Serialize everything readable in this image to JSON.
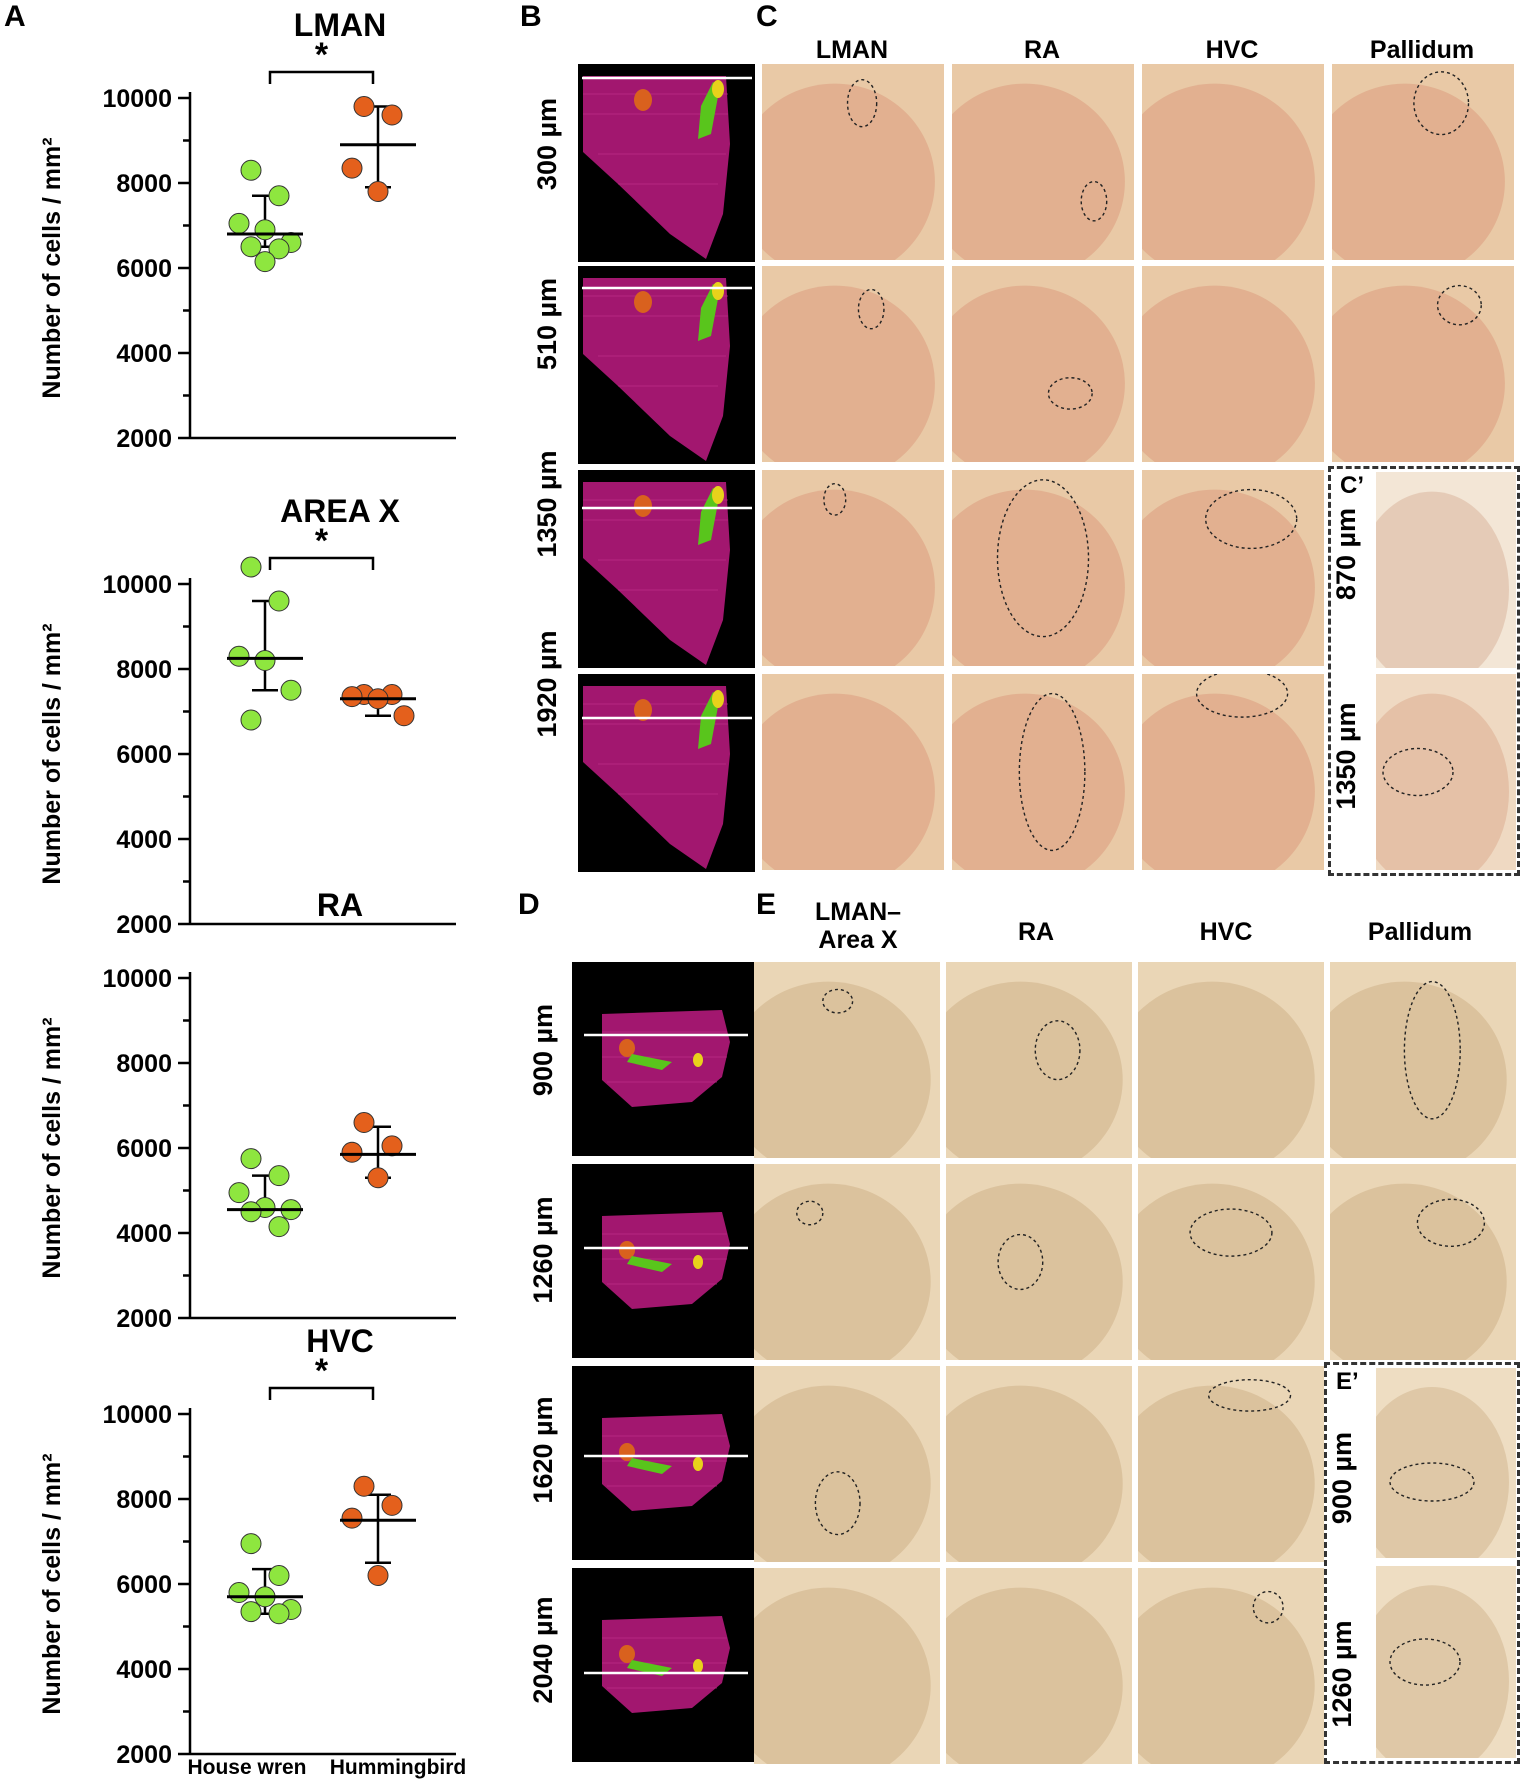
{
  "panel_labels": {
    "a": "A",
    "b": "B",
    "c": "C",
    "d": "D",
    "e": "E",
    "c_prime": "C’",
    "e_prime": "E’"
  },
  "chart_data": [
    {
      "type": "scatter",
      "title": "LMAN",
      "ylabel": "Number of cells / mm²",
      "ylim": [
        2000,
        10000
      ],
      "yticks": [
        "2000",
        "4000",
        "6000",
        "8000",
        "10000"
      ],
      "significance": "*",
      "groups": [
        {
          "name": "House wren",
          "color": "#8ee63f",
          "points": [
            8300,
            7700,
            7050,
            6900,
            6600,
            6500,
            6450,
            6150
          ],
          "mean": 6800,
          "err_low": 6500,
          "err_high": 7700
        },
        {
          "name": "Hummingbird",
          "color": "#e4601c",
          "points": [
            9800,
            9600,
            8350,
            7800
          ],
          "mean": 8900,
          "err_low": 7900,
          "err_high": 9800
        }
      ]
    },
    {
      "type": "scatter",
      "title": "AREA X",
      "ylabel": "Number of cells / mm²",
      "ylim": [
        2000,
        10000
      ],
      "yticks": [
        "2000",
        "4000",
        "6000",
        "8000",
        "10000"
      ],
      "significance": "*",
      "groups": [
        {
          "name": "House wren",
          "color": "#8ee63f",
          "points": [
            10400,
            9600,
            8300,
            8200,
            7500,
            6800
          ],
          "mean": 8250,
          "err_low": 7500,
          "err_high": 9600
        },
        {
          "name": "Hummingbird",
          "color": "#e4601c",
          "points": [
            7400,
            7400,
            7350,
            7300,
            6900
          ],
          "mean": 7300,
          "err_low": 6900,
          "err_high": 7400
        }
      ]
    },
    {
      "type": "scatter",
      "title": "RA",
      "ylabel": "Number of cells / mm²",
      "ylim": [
        2000,
        10000
      ],
      "yticks": [
        "2000",
        "4000",
        "6000",
        "8000",
        "10000"
      ],
      "significance": "",
      "groups": [
        {
          "name": "House wren",
          "color": "#8ee63f",
          "points": [
            5750,
            5350,
            4950,
            4600,
            4550,
            4500,
            4150
          ],
          "mean": 4550,
          "err_low": 4550,
          "err_high": 5350
        },
        {
          "name": "Hummingbird",
          "color": "#e4601c",
          "points": [
            6600,
            6050,
            5900,
            5300
          ],
          "mean": 5850,
          "err_low": 5300,
          "err_high": 6500
        }
      ]
    },
    {
      "type": "scatter",
      "title": "HVC",
      "ylabel": "Number of cells / mm²",
      "ylim": [
        2000,
        10000
      ],
      "yticks": [
        "2000",
        "4000",
        "6000",
        "8000",
        "10000"
      ],
      "significance": "*",
      "groups": [
        {
          "name": "House wren",
          "color": "#8ee63f",
          "points": [
            6950,
            6200,
            5800,
            5700,
            5400,
            5350,
            5300
          ],
          "mean": 5700,
          "err_low": 5300,
          "err_high": 6350
        },
        {
          "name": "Hummingbird",
          "color": "#e4601c",
          "points": [
            8300,
            7850,
            7550,
            6200
          ],
          "mean": 7500,
          "err_low": 6500,
          "err_high": 8100
        }
      ]
    }
  ],
  "x_labels": [
    "House wren",
    "Hummingbird"
  ],
  "panel_c": {
    "columns": [
      "LMAN",
      "RA",
      "HVC",
      "Pallidum"
    ],
    "rows": [
      "300 µm",
      "510 µm",
      "1350 µm",
      "1920 µm"
    ],
    "inset_rows": [
      "870 µm",
      "1350 µm"
    ]
  },
  "panel_e": {
    "columns": [
      "LMAN–",
      "Area X",
      "RA",
      "HVC",
      "Pallidum"
    ],
    "rows": [
      "900 µm",
      "1260 µm",
      "1620 µm",
      "2040 µm"
    ],
    "inset_rows": [
      "900 µm",
      "1260 µm"
    ]
  },
  "colors": {
    "stain_c": "#e9c9a6",
    "stain_e": "#ead6b6",
    "recon_brain": "#a2176f",
    "recon_green": "#59c51c",
    "recon_orange": "#d9611e",
    "recon_yellow": "#e8d21b"
  }
}
